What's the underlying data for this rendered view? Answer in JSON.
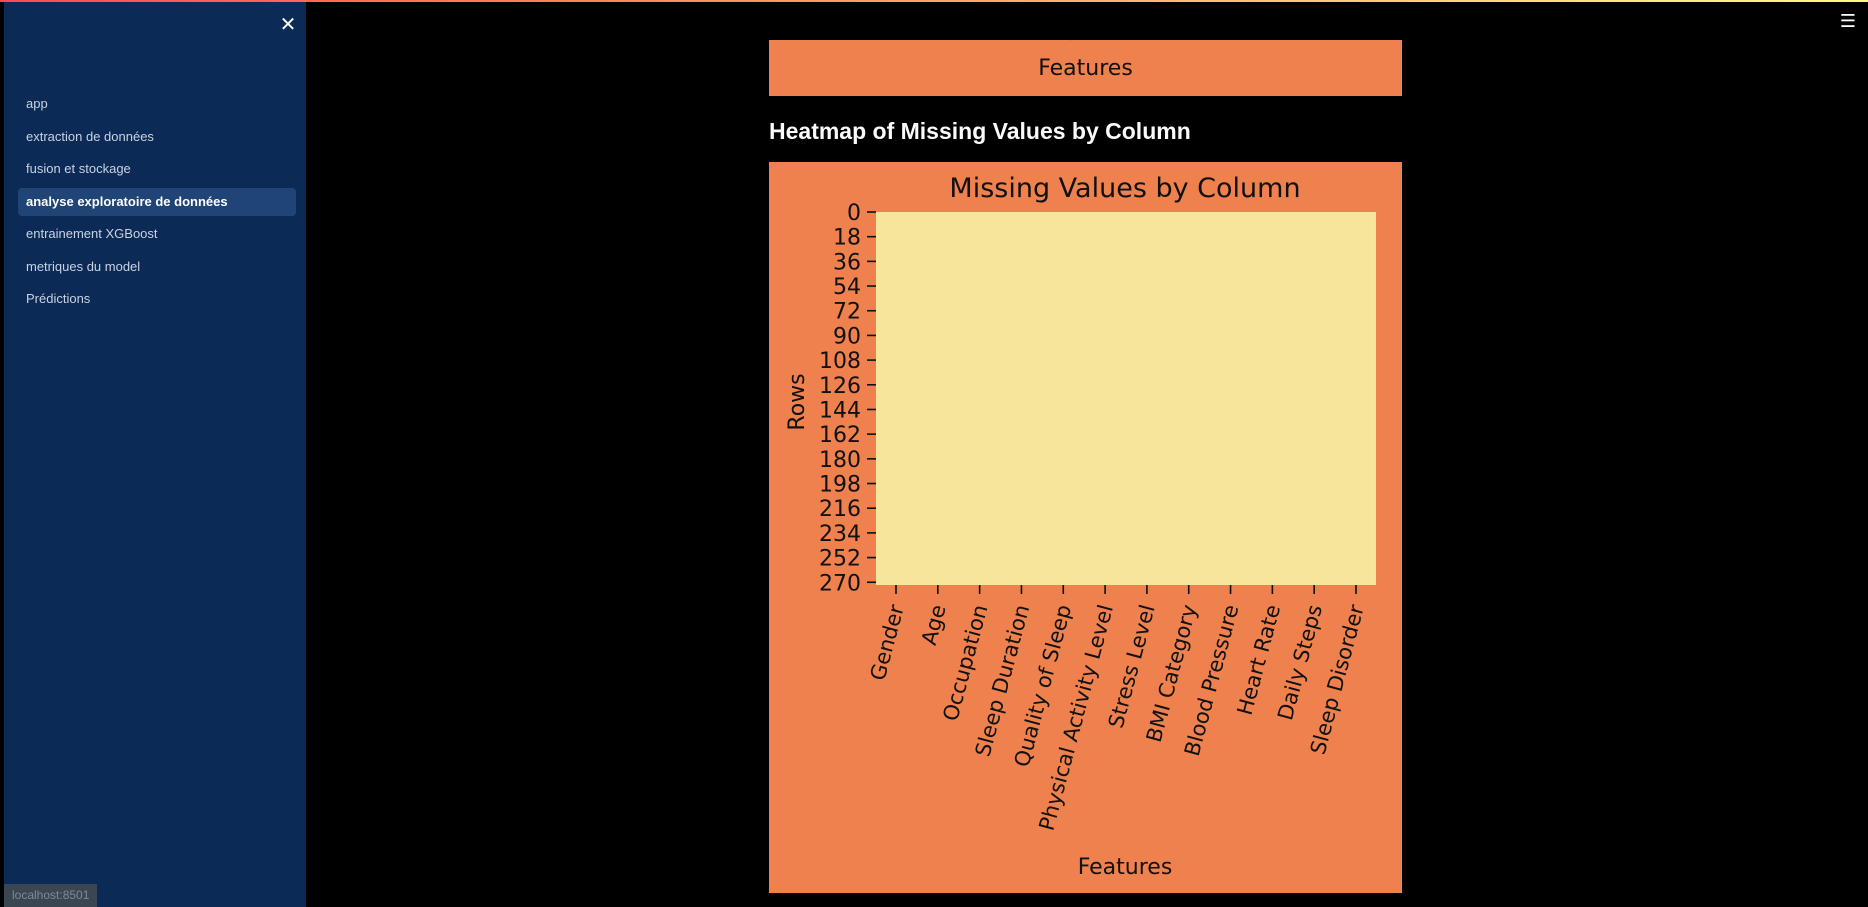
{
  "sidebar": {
    "close_icon": "close-icon",
    "items": [
      {
        "label": "app",
        "active": false
      },
      {
        "label": "extraction de données",
        "active": false
      },
      {
        "label": "fusion et stockage",
        "active": false
      },
      {
        "label": "analyse exploratoire de données",
        "active": true
      },
      {
        "label": "entrainement XGBoost",
        "active": false
      },
      {
        "label": "metriques du model",
        "active": false
      },
      {
        "label": "Prédictions",
        "active": false
      }
    ]
  },
  "status_bar": {
    "text": "localhost:8501"
  },
  "header": {
    "menu_icon": "hamburger-menu-icon"
  },
  "previous_figure": {
    "xlabel": "Features",
    "clipped_label": "F"
  },
  "section": {
    "title": "Heatmap of Missing Values by Column"
  },
  "colors": {
    "figure_background": "#ee814d",
    "heatmap_cell": "#f8e59c",
    "sidebar": "#0b2a56"
  },
  "chart_data": {
    "type": "heatmap",
    "title": "Missing Values by Column",
    "xlabel": "Features",
    "ylabel": "Rows",
    "columns": [
      "Gender",
      "Age",
      "Occupation",
      "Sleep Duration",
      "Quality of Sleep",
      "Physical Activity Level",
      "Stress Level",
      "BMI Category",
      "Blood Pressure",
      "Heart Rate",
      "Daily Steps",
      "Sleep Disorder"
    ],
    "row_ticks": [
      "0",
      "18",
      "36",
      "54",
      "72",
      "90",
      "108",
      "126",
      "144",
      "162",
      "180",
      "198",
      "216",
      "234",
      "252",
      "270"
    ],
    "missing_values": [
      0,
      0,
      0,
      0,
      0,
      0,
      0,
      0,
      0,
      0,
      0,
      0
    ],
    "colorbar": false
  }
}
